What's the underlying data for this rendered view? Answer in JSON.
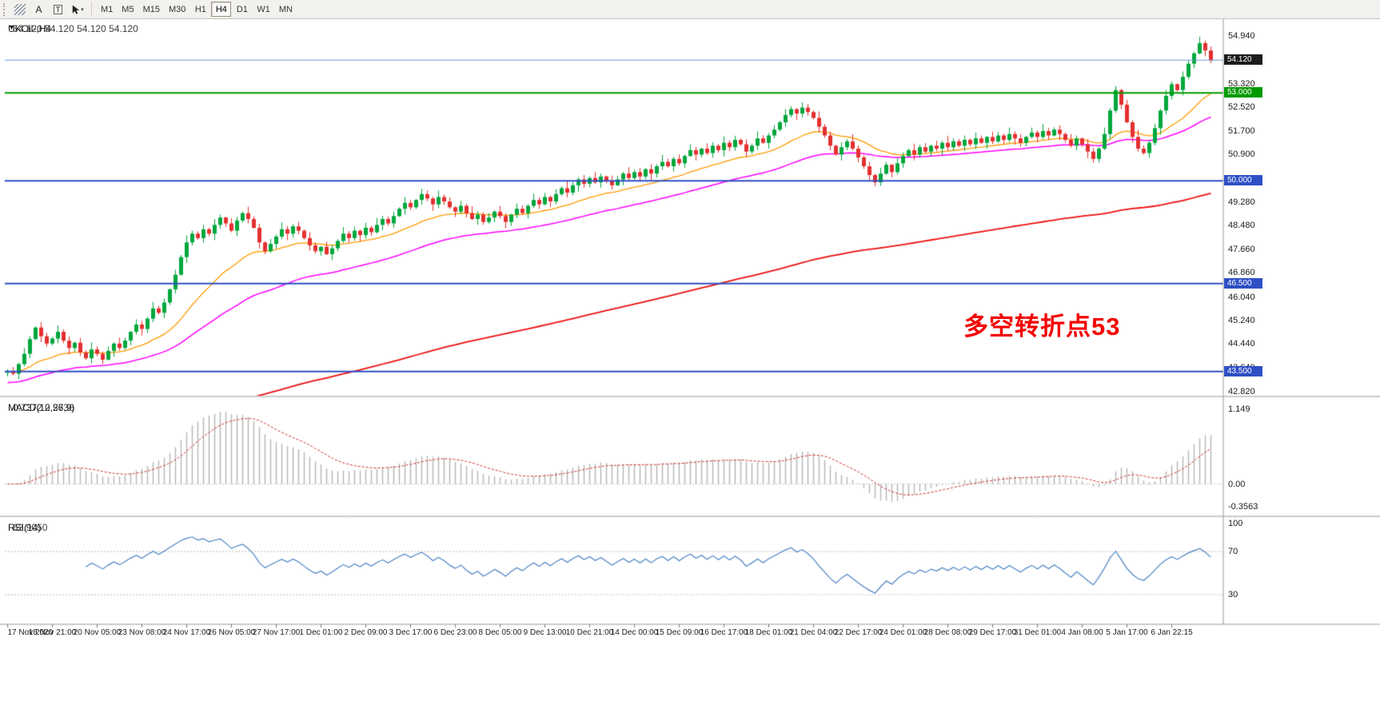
{
  "toolbar": {
    "a_label": "A",
    "t_label": "T",
    "dropdown_icon": "▾",
    "timeframes": [
      "M1",
      "M5",
      "M15",
      "M30",
      "H1",
      "H4",
      "D1",
      "W1",
      "MN"
    ],
    "active_timeframe": "H4"
  },
  "chart": {
    "dropdown_icon": "▼",
    "symbol_title": "UKOil-,H4",
    "ohlc_text": "54.120 54.120 54.120 54.120"
  },
  "chart_data": [
    {
      "type": "candlestick",
      "symbol": "UKOil-",
      "timeframe": "H4",
      "ylim": [
        42.7,
        55.3
      ],
      "y_axis_labels": [
        "54.940",
        "53.320",
        "52.520",
        "51.700",
        "50.900",
        "49.280",
        "48.480",
        "47.660",
        "46.860",
        "46.040",
        "45.240",
        "44.440",
        "43.640",
        "42.820"
      ],
      "x_labels": [
        "17 Nov 2020",
        "18 Nov 21:00",
        "20 Nov 05:00",
        "23 Nov 08:00",
        "24 Nov 17:00",
        "26 Nov 05:00",
        "27 Nov 17:00",
        "1 Dec 01:00",
        "2 Dec 09:00",
        "3 Dec 17:00",
        "6 Dec 23:00",
        "8 Dec 05:00",
        "9 Dec 13:00",
        "10 Dec 21:00",
        "14 Dec 00:00",
        "15 Dec 09:00",
        "16 Dec 17:00",
        "18 Dec 01:00",
        "21 Dec 04:00",
        "22 Dec 17:00",
        "24 Dec 01:00",
        "28 Dec 08:00",
        "29 Dec 17:00",
        "31 Dec 01:00",
        "4 Jan 08:00",
        "5 Jan 17:00",
        "6 Jan 22:15"
      ],
      "bars_per_label": 8,
      "first_open": 43.45,
      "closes": [
        43.5,
        43.42,
        43.75,
        44.1,
        44.6,
        45.0,
        44.7,
        44.45,
        44.62,
        44.85,
        44.55,
        44.3,
        44.48,
        44.15,
        43.95,
        44.25,
        44.1,
        43.9,
        44.2,
        44.45,
        44.3,
        44.55,
        44.85,
        45.1,
        44.95,
        45.3,
        45.65,
        45.5,
        45.85,
        46.3,
        46.8,
        47.4,
        47.9,
        48.2,
        48.05,
        48.35,
        48.2,
        48.5,
        48.75,
        48.55,
        48.3,
        48.65,
        48.9,
        48.7,
        48.4,
        47.9,
        47.6,
        47.85,
        48.1,
        48.35,
        48.2,
        48.45,
        48.3,
        48.05,
        47.8,
        47.6,
        47.75,
        47.5,
        47.7,
        47.95,
        48.2,
        48.05,
        48.3,
        48.15,
        48.4,
        48.25,
        48.5,
        48.7,
        48.55,
        48.8,
        49.05,
        49.25,
        49.1,
        49.35,
        49.55,
        49.4,
        49.2,
        49.45,
        49.3,
        49.1,
        48.95,
        49.15,
        48.9,
        48.7,
        48.85,
        48.6,
        48.75,
        48.95,
        48.8,
        48.6,
        48.85,
        49.05,
        48.9,
        49.15,
        49.35,
        49.2,
        49.45,
        49.3,
        49.55,
        49.75,
        49.6,
        49.85,
        50.05,
        49.9,
        50.1,
        49.95,
        50.15,
        50.0,
        49.85,
        50.05,
        50.25,
        50.1,
        50.3,
        50.15,
        50.4,
        50.25,
        50.5,
        50.65,
        50.5,
        50.75,
        50.6,
        50.85,
        51.05,
        50.9,
        51.1,
        50.95,
        51.2,
        51.05,
        51.3,
        51.15,
        51.4,
        51.25,
        51.0,
        51.2,
        51.45,
        51.3,
        51.55,
        51.75,
        52.0,
        52.25,
        52.45,
        52.3,
        52.5,
        52.35,
        52.15,
        51.85,
        51.55,
        51.2,
        50.9,
        51.15,
        51.35,
        51.1,
        50.8,
        50.5,
        50.2,
        49.95,
        50.25,
        50.55,
        50.3,
        50.6,
        50.85,
        51.05,
        50.9,
        51.15,
        51.0,
        51.2,
        51.1,
        51.3,
        51.15,
        51.35,
        51.2,
        51.4,
        51.25,
        51.45,
        51.3,
        51.5,
        51.35,
        51.55,
        51.4,
        51.6,
        51.45,
        51.3,
        51.5,
        51.65,
        51.5,
        51.7,
        51.55,
        51.75,
        51.6,
        51.4,
        51.2,
        51.45,
        51.25,
        51.0,
        50.75,
        51.1,
        51.6,
        52.4,
        53.1,
        52.6,
        52.0,
        51.5,
        51.1,
        50.95,
        51.3,
        51.8,
        52.4,
        52.9,
        53.3,
        53.1,
        53.55,
        54.0,
        54.35,
        54.7,
        54.45,
        54.12
      ],
      "wick_up": [
        0.08,
        0.15,
        0.05,
        0.2,
        0.1,
        0.03,
        0.18,
        0.12,
        0.06,
        0.22,
        0.09,
        0.14,
        0.04,
        0.17,
        0.07,
        0.24,
        0.11
      ],
      "wick_dn": [
        0.12,
        0.05,
        0.18,
        0.08,
        0.15,
        0.03,
        0.2,
        0.1,
        0.06,
        0.16,
        0.09,
        0.22,
        0.13
      ],
      "colors": {
        "up": "#00a73c",
        "down": "#e43030"
      },
      "price_lines": [
        {
          "value": 54.12,
          "label": "54.120",
          "color": "#6b9bd2",
          "width": 1,
          "badge": "#1c1c1c",
          "kind": "last-price"
        },
        {
          "value": 53.0,
          "label": "53.000",
          "color": "#009b00",
          "width": 2,
          "badge": "#009b00",
          "kind": "horizontal-line"
        },
        {
          "value": 50.0,
          "label": "50.000",
          "color": "#2f4fc5",
          "width": 2,
          "badge": "#2f4fc5",
          "kind": "horizontal-line"
        },
        {
          "value": 46.5,
          "label": "46.500",
          "color": "#2f4fc5",
          "width": 2,
          "badge": "#2f4fc5",
          "kind": "horizontal-line"
        },
        {
          "value": 43.5,
          "label": "43.500",
          "color": "#2f4fc5",
          "width": 2,
          "badge": "#2f4fc5",
          "kind": "horizontal-line"
        }
      ],
      "moving_averages": [
        {
          "name": "slow-ma",
          "period": 200,
          "color": "#ee1111",
          "width": 1.8,
          "seed_offset": -2.8
        },
        {
          "name": "medium-ma",
          "period": 50,
          "color": "#ff00ff",
          "width": 1.5,
          "seed_offset": -0.4
        },
        {
          "name": "fast-ma",
          "period": 21,
          "color": "#ff9b00",
          "width": 1.3,
          "seed_offset": 0
        }
      ],
      "annotation": {
        "text": "多空转折点53",
        "color": "#f40000"
      }
    },
    {
      "type": "macd",
      "title": "MACD(12,26,9)",
      "values_display": "0.7372 0.5736",
      "params": [
        12,
        26,
        9
      ],
      "ylim": [
        -0.4,
        1.25
      ],
      "axis_labels": [
        {
          "text": "1.149",
          "value": 1.149
        },
        {
          "text": "0.00",
          "value": 0
        },
        {
          "text": "-0.3563",
          "value": -0.3563
        }
      ],
      "colors": {
        "histogram": "#b5b5b5",
        "signal": "#d03030"
      }
    },
    {
      "type": "rsi",
      "title": "RSI(14)",
      "value_display": "63.9050",
      "period": 14,
      "levels": [
        70,
        30
      ],
      "axis_labels": [
        {
          "text": "100",
          "value": 100
        },
        {
          "text": "70",
          "value": 70
        },
        {
          "text": "30",
          "value": 30
        }
      ],
      "color": "#4a84c4"
    }
  ]
}
